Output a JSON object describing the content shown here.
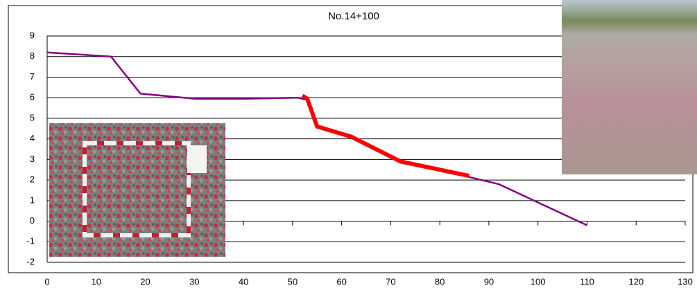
{
  "chart_data": {
    "type": "line",
    "title": "No.14+100",
    "series": [
      {
        "color": "#800080",
        "x": [
          0,
          13,
          19,
          30,
          41,
          51,
          53,
          55,
          62,
          72,
          85,
          92,
          110
        ],
        "values": [
          8.2,
          8.0,
          6.2,
          5.95,
          5.95,
          6.0,
          5.9,
          4.6,
          4.1,
          2.9,
          2.2,
          1.8,
          -0.2
        ]
      },
      {
        "color": "#ff0000",
        "x": [
          52,
          53,
          55,
          62,
          72,
          86
        ],
        "values": [
          6.1,
          5.95,
          4.6,
          4.1,
          2.9,
          2.2
        ]
      }
    ],
    "xlim": [
      0,
      130
    ],
    "xticks": [
      0,
      10,
      20,
      30,
      40,
      50,
      60,
      70,
      80,
      90,
      100,
      110,
      120,
      130
    ],
    "ylim": [
      -2,
      9
    ],
    "yticks": [
      -2,
      -1,
      0,
      1,
      2,
      3,
      4,
      5,
      6,
      7,
      8,
      9
    ],
    "grid": true
  }
}
